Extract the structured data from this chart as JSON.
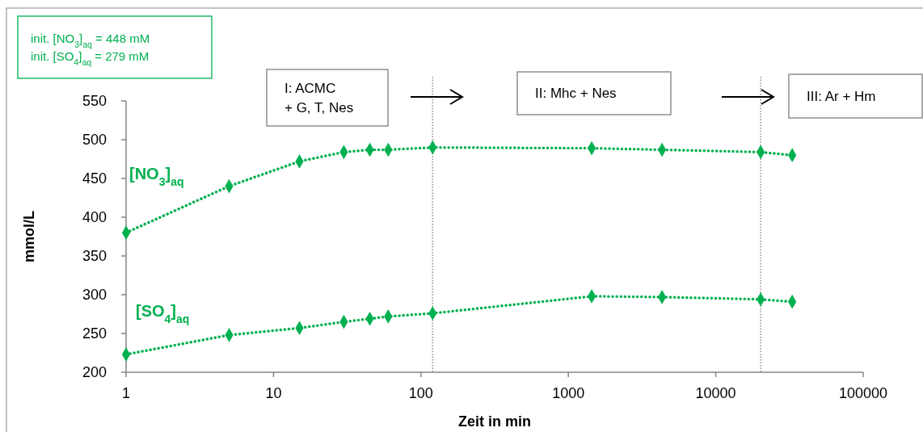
{
  "chart_data": {
    "type": "line",
    "xlabel": "Zeit in min",
    "ylabel": "mmol/L",
    "log": "x",
    "x": [
      1,
      5,
      15,
      30,
      45,
      60,
      120,
      1440,
      4320,
      20160,
      33000
    ],
    "series": [
      {
        "name": "[NO$_{3}$]$_{aq}$",
        "color": "#00b050",
        "values": [
          380,
          440,
          472,
          484,
          487,
          487,
          490,
          489,
          487,
          484,
          480
        ]
      },
      {
        "name": "[SO$_{4}$]$_{aq}$",
        "color": "#00b050",
        "values": [
          223,
          248,
          257,
          265,
          269,
          272,
          276,
          298,
          297,
          294,
          291
        ]
      }
    ],
    "xlim": [
      1,
      100000
    ],
    "xticks": [
      1,
      10,
      100,
      1000,
      10000,
      100000
    ],
    "ylim": [
      200,
      550
    ],
    "yticks": [
      200,
      250,
      300,
      350,
      400,
      450,
      500,
      550
    ],
    "marker": "diamond",
    "line_style": "dotted",
    "grid": false,
    "ref_lines": [
      {
        "axis": "x",
        "value": 120,
        "color": "#7f7f7f",
        "line_style": "dotted"
      },
      {
        "axis": "x",
        "value": 20160,
        "color": "#7f7f7f",
        "line_style": "dotted"
      }
    ],
    "annotations": [
      "init. [NO$_{3}$]$_{aq}$ = 448 mM",
      "init. [SO$_{4}$]$_{aq}$  = 279 mM",
      "I:  ACMC\n+ G, T, Nes",
      "II:  Mhc + Nes",
      "III:  Ar + Hm"
    ]
  }
}
